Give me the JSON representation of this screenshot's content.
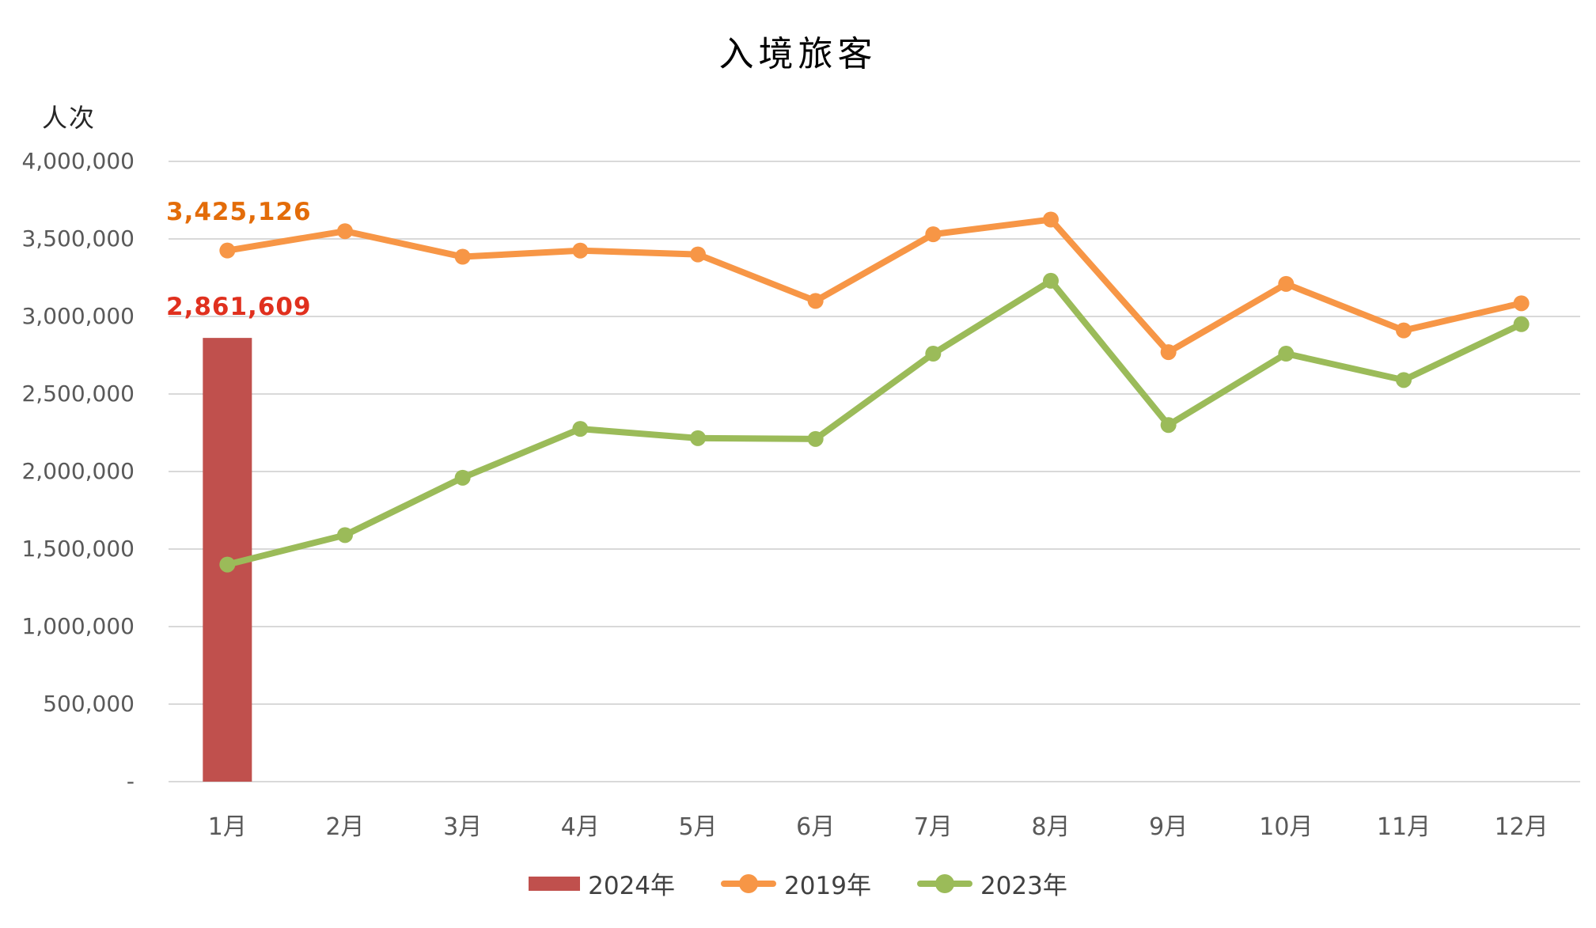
{
  "title": "入境旅客",
  "y_axis_unit_label": "人次",
  "colors": {
    "background": "#FFFFFF",
    "grid": "#D9D9D9",
    "axis_text": "#595959",
    "title_text": "#000000",
    "legend_text": "#404040",
    "bar_2024": "#C0504D",
    "line_2019": "#F79646",
    "line_2023": "#9BBB59",
    "label_2019": "#E36C09",
    "label_2024": "#E0301E"
  },
  "chart_data": {
    "type": "combo",
    "subtypes": [
      "bar",
      "line",
      "line"
    ],
    "title": "入境旅客",
    "xlabel": "",
    "ylabel": "人次",
    "ylim": [
      0,
      4000000
    ],
    "grid": true,
    "legend_position": "bottom",
    "categories": [
      "1月",
      "2月",
      "3月",
      "4月",
      "5月",
      "6月",
      "7月",
      "8月",
      "9月",
      "10月",
      "11月",
      "12月"
    ],
    "y_ticks": [
      {
        "value": 4000000,
        "label": "4,000,000"
      },
      {
        "value": 3500000,
        "label": "3,500,000"
      },
      {
        "value": 3000000,
        "label": "3,000,000"
      },
      {
        "value": 2500000,
        "label": "2,500,000"
      },
      {
        "value": 2000000,
        "label": "2,000,000"
      },
      {
        "value": 1500000,
        "label": "1,500,000"
      },
      {
        "value": 1000000,
        "label": "1,000,000"
      },
      {
        "value": 500000,
        "label": "500,000"
      },
      {
        "value": 0,
        "label": "-"
      }
    ],
    "series": [
      {
        "name": "2024年",
        "type": "bar",
        "color": "#C0504D",
        "values": [
          2861609,
          null,
          null,
          null,
          null,
          null,
          null,
          null,
          null,
          null,
          null,
          null
        ]
      },
      {
        "name": "2019年",
        "type": "line",
        "color": "#F79646",
        "values": [
          3425126,
          3550000,
          3385000,
          3425000,
          3400000,
          3100000,
          3530000,
          3625000,
          2770000,
          3210000,
          2910000,
          3085000
        ]
      },
      {
        "name": "2023年",
        "type": "line",
        "color": "#9BBB59",
        "values": [
          1400000,
          1590000,
          1960000,
          2275000,
          2215000,
          2210000,
          2760000,
          3230000,
          2300000,
          2760000,
          2590000,
          2950000
        ]
      }
    ],
    "data_labels": [
      {
        "series": "2019年",
        "category": "1月",
        "text": "3,425,126",
        "color": "#E36C09"
      },
      {
        "series": "2024年",
        "category": "1月",
        "text": "2,861,609",
        "color": "#E0301E"
      }
    ]
  },
  "legend": {
    "items": [
      {
        "label": "2024年",
        "marker": "rect",
        "color": "#C0504D"
      },
      {
        "label": "2019年",
        "marker": "line-dot",
        "color": "#F79646"
      },
      {
        "label": "2023年",
        "marker": "line-dot",
        "color": "#9BBB59"
      }
    ]
  }
}
